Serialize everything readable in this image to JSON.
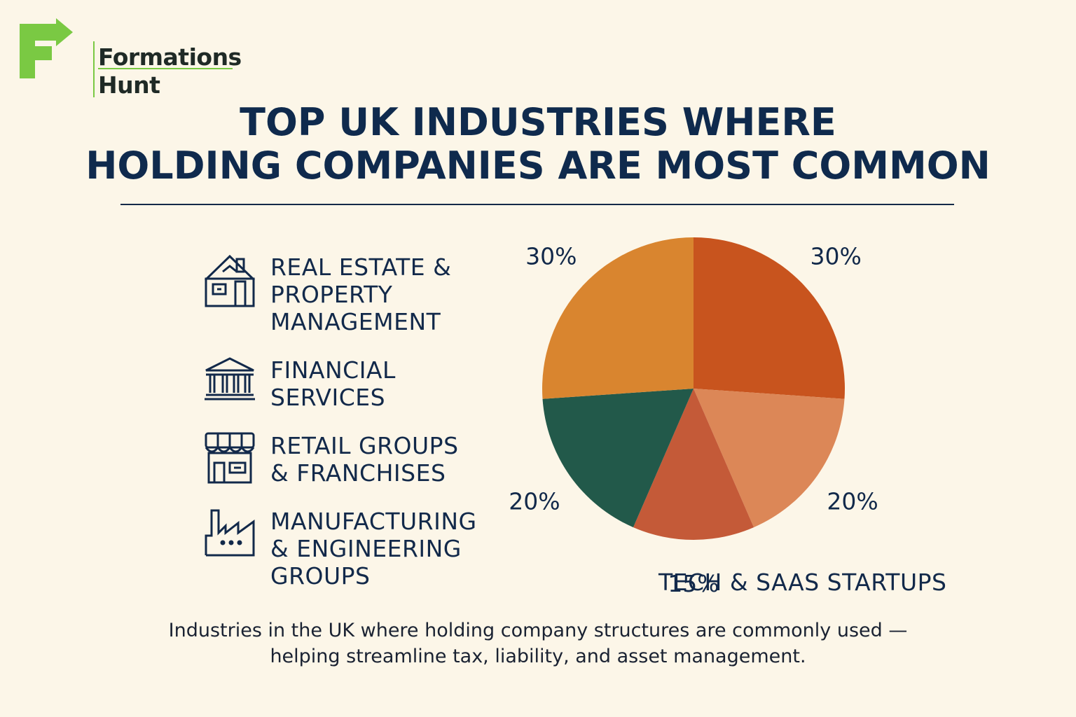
{
  "brand": {
    "line1": "Formations",
    "line2": "Hunt",
    "colors": {
      "mark": "#7ac943",
      "text": "#1f2a26"
    }
  },
  "title": {
    "line1": "TOP UK INDUSTRIES WHERE",
    "line2": "HOLDING COMPANIES ARE MOST COMMON"
  },
  "legend": [
    {
      "icon": "house-icon",
      "lines": [
        "REAL ESTATE &",
        "PROPERTY",
        "MANAGEMENT"
      ]
    },
    {
      "icon": "bank-icon",
      "lines": [
        "FINANCIAL",
        "SERVICES"
      ]
    },
    {
      "icon": "storefront-icon",
      "lines": [
        "RETAIL GROUPS",
        "& FRANCHISES"
      ]
    },
    {
      "icon": "factory-icon",
      "lines": [
        "MANUFACTURING",
        "& ENGINEERING",
        "GROUPS"
      ]
    }
  ],
  "chart_data": {
    "type": "pie",
    "slices": [
      {
        "value": 30,
        "label": "30%",
        "color": "#c8541e"
      },
      {
        "value": 20,
        "label": "20%",
        "color": "#dc8757"
      },
      {
        "value": 15,
        "label": "15%",
        "color": "#c45a38"
      },
      {
        "value": 20,
        "label": "20%",
        "color": "#22594a"
      },
      {
        "value": 30,
        "label": "30%",
        "color": "#d9852f"
      }
    ],
    "annotation": "TECH & SAAS STARTUPS"
  },
  "caption": {
    "line1": "Industries in the UK where holding company structures are commonly used —",
    "line2": "helping streamline tax, liability, and asset management."
  }
}
